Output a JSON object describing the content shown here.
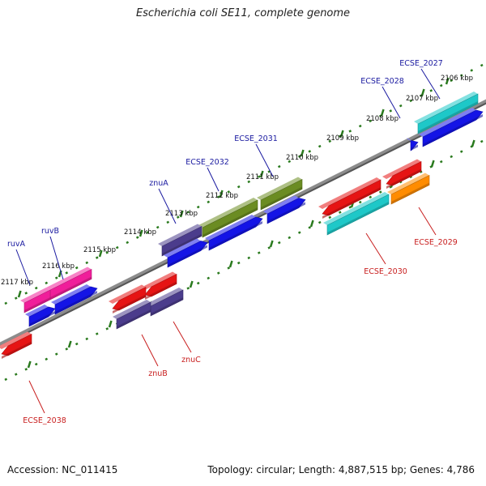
{
  "title": "Escherichia coli SE11, complete genome",
  "accession": "Accession: NC_011415",
  "topology": "Topology: circular; Length: 4,887,515 bp; Genes: 4,786",
  "colors": {
    "ruler": "#2a7a1e",
    "backbone": "#8c8c8c",
    "label_top": "#1a1aa0",
    "label_bottom": "#c81e1e",
    "tick_text": "#111111"
  },
  "kbp_labels": [
    "2106 kbp",
    "2107 kbp",
    "2108 kbp",
    "2109 kbp",
    "2110 kbp",
    "2111 kbp",
    "2112 kbp",
    "2113 kbp",
    "2114 kbp",
    "2115 kbp",
    "2116 kbp",
    "2117 kbp"
  ],
  "genes_top": [
    {
      "id": "ECSE_2027",
      "color": "#1ec8c8"
    },
    {
      "id": "ECSE_2028",
      "color": "#1414e6"
    },
    {
      "id": "ECSE_2031",
      "color": "#6b8c22"
    },
    {
      "id": "ECSE_2032",
      "color": "#6b8c22"
    },
    {
      "id": "znuA",
      "color": "#4b3c8c"
    },
    {
      "id": "ruvB",
      "color": "#f01e9a"
    },
    {
      "id": "ruvA",
      "color": "#f01e9a"
    }
  ],
  "genes_bottom": [
    {
      "id": "ECSE_2029",
      "color": "#ff8c00"
    },
    {
      "id": "ECSE_2030",
      "color": "#1ec8c8"
    },
    {
      "id": "znuC",
      "color": "#4b3c8c"
    },
    {
      "id": "znuB",
      "color": "#4b3c8c"
    },
    {
      "id": "ECSE_2038",
      "color": "#e61414"
    }
  ],
  "cds_colors": {
    "blue": "#1414e6",
    "red": "#e61414"
  }
}
